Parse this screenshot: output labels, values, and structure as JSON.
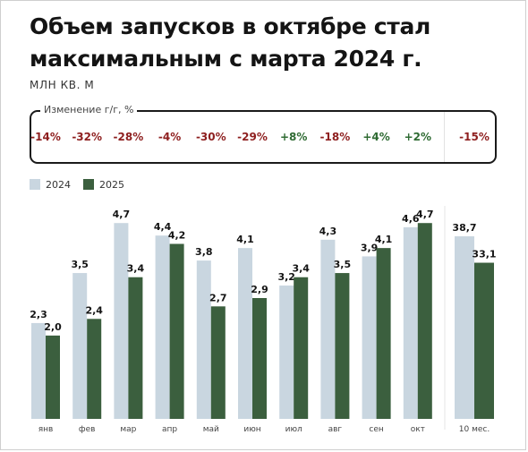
{
  "title": "Объем запусков в октябре стал максимальным с марта 2024 г.",
  "unit": "МЛН КВ. М",
  "yoy": {
    "label": "Изменение г/г, %",
    "values": [
      "-14%",
      "-32%",
      "-28%",
      "-4%",
      "-30%",
      "-29%",
      "+8%",
      "-18%",
      "+4%",
      "+2%",
      "-15%"
    ]
  },
  "colors": {
    "series_2024": "#c9d6e0",
    "series_2025": "#3b5f3e",
    "negative": "#8e1f1f",
    "positive": "#2f6b33"
  },
  "chart_data": {
    "type": "bar",
    "categories": [
      "янв",
      "фев",
      "мар",
      "апр",
      "май",
      "июн",
      "июл",
      "авг",
      "сен",
      "окт"
    ],
    "series": [
      {
        "name": "2024",
        "values": [
          2.3,
          3.5,
          4.7,
          4.4,
          3.8,
          4.1,
          3.2,
          4.3,
          3.9,
          4.6
        ],
        "labels": [
          "2,3",
          "3,5",
          "4,7",
          "4,4",
          "3,8",
          "4,1",
          "3,2",
          "4,3",
          "3,9",
          "4,6"
        ]
      },
      {
        "name": "2025",
        "values": [
          2.0,
          2.4,
          3.4,
          4.2,
          2.7,
          2.9,
          3.4,
          3.5,
          4.1,
          4.7
        ],
        "labels": [
          "2,0",
          "2,4",
          "3,4",
          "4,2",
          "2,7",
          "2,9",
          "3,4",
          "3,5",
          "4,1",
          "4,7"
        ]
      }
    ],
    "total": {
      "category": "10 мес.",
      "values": [
        38.7,
        33.1
      ],
      "labels": [
        "38,7",
        "33,1"
      ]
    },
    "ylim": [
      0,
      5.0
    ],
    "total_ylim": [
      0,
      48
    ],
    "legend_position": "top-left",
    "grid": false
  }
}
